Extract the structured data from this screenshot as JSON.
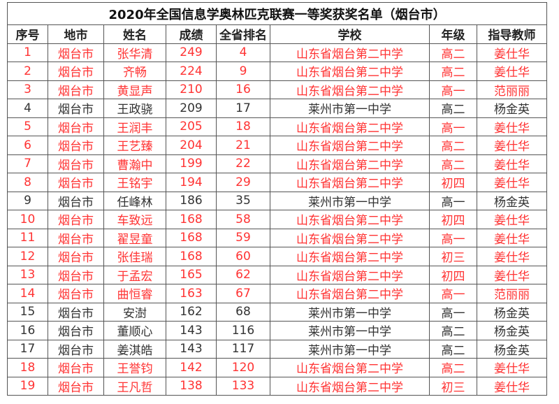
{
  "title": "2020年全国信息学奥林匹克联赛一等奖获奖名单（烟台市）",
  "columns": [
    "序号",
    "地市",
    "姓名",
    "成绩",
    "全省排名",
    "学校",
    "年级",
    "指导教师"
  ],
  "highlight_color": "#ff3333",
  "rows": [
    {
      "cells": [
        "1",
        "烟台市",
        "张华清",
        "249",
        "4",
        "山东省烟台第二中学",
        "高二",
        "姜仕华"
      ],
      "highlight": true
    },
    {
      "cells": [
        "2",
        "烟台市",
        "齐畅",
        "224",
        "9",
        "山东省烟台第二中学",
        "高二",
        "姜仕华"
      ],
      "highlight": true
    },
    {
      "cells": [
        "3",
        "烟台市",
        "黄显声",
        "210",
        "16",
        "山东省烟台第二中学",
        "高一",
        "范丽丽"
      ],
      "highlight": true
    },
    {
      "cells": [
        "4",
        "烟台市",
        "王政骁",
        "209",
        "17",
        "莱州市第一中学",
        "高二",
        "杨金英"
      ],
      "highlight": false
    },
    {
      "cells": [
        "5",
        "烟台市",
        "王润丰",
        "205",
        "18",
        "山东省烟台第二中学",
        "高一",
        "姜仕华"
      ],
      "highlight": true
    },
    {
      "cells": [
        "6",
        "烟台市",
        "王艺臻",
        "204",
        "21",
        "山东省烟台第二中学",
        "高二",
        "姜仕华"
      ],
      "highlight": true
    },
    {
      "cells": [
        "7",
        "烟台市",
        "曹瀚中",
        "199",
        "22",
        "山东省烟台第二中学",
        "高二",
        "姜仕华"
      ],
      "highlight": true
    },
    {
      "cells": [
        "8",
        "烟台市",
        "王铭宇",
        "194",
        "29",
        "山东省烟台第二中学",
        "初四",
        "姜仕华"
      ],
      "highlight": true
    },
    {
      "cells": [
        "9",
        "烟台市",
        "任峰林",
        "186",
        "35",
        "莱州市第一中学",
        "高一",
        "杨金英"
      ],
      "highlight": false
    },
    {
      "cells": [
        "10",
        "烟台市",
        "车致远",
        "168",
        "58",
        "山东省烟台第二中学",
        "初四",
        "姜仕华"
      ],
      "highlight": true
    },
    {
      "cells": [
        "11",
        "烟台市",
        "翟昱童",
        "168",
        "59",
        "山东省烟台第二中学",
        "高一",
        "姜仕华"
      ],
      "highlight": true
    },
    {
      "cells": [
        "12",
        "烟台市",
        "张佳瑞",
        "168",
        "60",
        "山东省烟台第二中学",
        "初三",
        "姜仕华"
      ],
      "highlight": true
    },
    {
      "cells": [
        "13",
        "烟台市",
        "于孟宏",
        "165",
        "62",
        "山东省烟台第二中学",
        "初四",
        "姜仕华"
      ],
      "highlight": true
    },
    {
      "cells": [
        "14",
        "烟台市",
        "曲恒睿",
        "163",
        "67",
        "山东省烟台第二中学",
        "高一",
        "范丽丽"
      ],
      "highlight": true
    },
    {
      "cells": [
        "15",
        "烟台市",
        "安澍",
        "162",
        "68",
        "莱州市第一中学",
        "高一",
        "杨金英"
      ],
      "highlight": false
    },
    {
      "cells": [
        "16",
        "烟台市",
        "董顺心",
        "143",
        "116",
        "莱州市第一中学",
        "高二",
        "杨金英"
      ],
      "highlight": false
    },
    {
      "cells": [
        "17",
        "烟台市",
        "姜淇皓",
        "143",
        "117",
        "莱州市第一中学",
        "高二",
        "杨金英"
      ],
      "highlight": false
    },
    {
      "cells": [
        "18",
        "烟台市",
        "王誉钧",
        "142",
        "120",
        "山东省烟台第二中学",
        "高二",
        "姜仕华"
      ],
      "highlight": true
    },
    {
      "cells": [
        "19",
        "烟台市",
        "王凡哲",
        "138",
        "133",
        "山东省烟台第二中学",
        "初三",
        "姜仕华"
      ],
      "highlight": true
    }
  ]
}
